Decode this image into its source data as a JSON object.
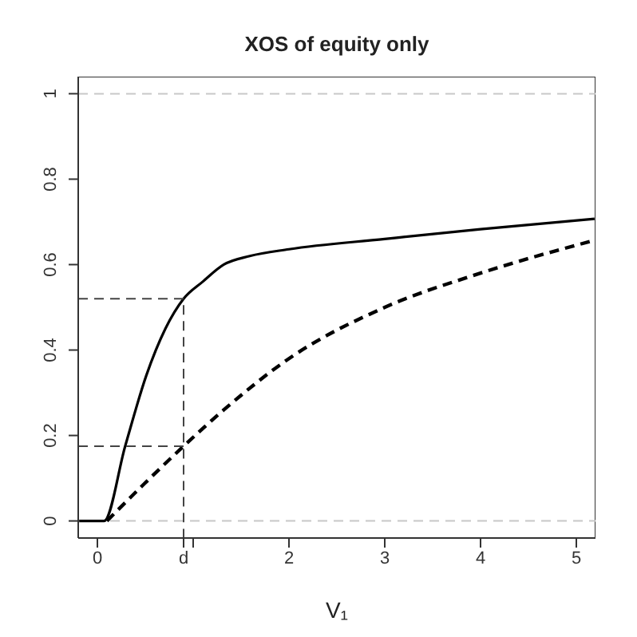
{
  "chart_data": {
    "type": "line",
    "title": "XOS of equity only",
    "xlabel": "V₁",
    "xlim": [
      -0.2,
      5.2
    ],
    "ylim": [
      -0.04,
      1.04
    ],
    "xticks": [
      0,
      {
        "value": 0.9,
        "label": "d"
      },
      {
        "value": 1,
        "label": null
      },
      2,
      3,
      4,
      5
    ],
    "yticks": [
      0,
      0.2,
      0.4,
      0.6,
      0.8,
      1
    ],
    "series": [
      {
        "type": "line",
        "color": "#000000",
        "line_style": "solid",
        "x": [
          -0.19,
          0.07,
          0.29,
          0.51,
          0.71,
          0.9,
          1.1,
          1.32,
          1.59,
          2,
          3,
          4,
          5.19
        ],
        "values": [
          0,
          0,
          0.175,
          0.34,
          0.45,
          0.52,
          0.56,
          0.6,
          0.62,
          0.636,
          0.66,
          0.683,
          0.707
        ]
      },
      {
        "type": "line",
        "color": "#000000",
        "line_style": "dashed",
        "x": [
          0.1,
          0.49,
          0.9,
          1.32,
          2,
          3,
          4,
          5.19
        ],
        "values": [
          0,
          0.087,
          0.175,
          0.26,
          0.38,
          0.5,
          0.58,
          0.657
        ]
      },
      {
        "type": "line",
        "color": "#444444",
        "line_style": "dashed",
        "x": [
          -0.2,
          0.9,
          0.9
        ],
        "values": [
          0.52,
          0.52,
          -0.04
        ]
      },
      {
        "type": "line",
        "color": "#444444",
        "line_style": "dashed",
        "x": [
          -0.2,
          0.9
        ],
        "values": [
          0.175,
          0.175
        ]
      }
    ],
    "ref_lines": [
      {
        "axis": "y",
        "value": 0,
        "color": "#c8c8c8",
        "line_style": "dashed"
      },
      {
        "axis": "y",
        "value": 1,
        "color": "#c8c8c8",
        "line_style": "dashed"
      }
    ]
  }
}
